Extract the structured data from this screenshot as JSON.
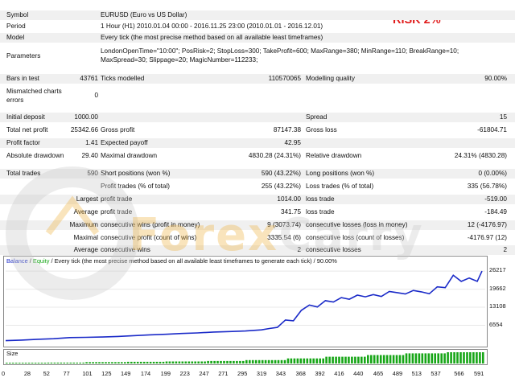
{
  "risk_label": "RISK 2%",
  "header": {
    "symbol_label": "Symbol",
    "symbol_value": "EURUSD (Euro vs US Dollar)",
    "period_label": "Period",
    "period_value": "1 Hour (H1) 2010.01.04 00:00 - 2016.11.25 23:00 (2010.01.01 - 2016.12.01)",
    "model_label": "Model",
    "model_value": "Every tick (the most precise method based on all available least timeframes)",
    "parameters_label": "Parameters",
    "parameters_line1": "LondonOpenTime=\"10:00\"; PosRisk=2; StopLoss=300; TakeProfit=600; MaxRange=380; MinRange=110; BreakRange=10;",
    "parameters_line2": "MaxSpread=30; Slippage=20; MagicNumber=112233;"
  },
  "stats": {
    "bars_label": "Bars in test",
    "bars_value": "43761",
    "ticks_label": "Ticks modelled",
    "ticks_value": "110570065",
    "quality_label": "Modelling quality",
    "quality_value": "90.00%",
    "mismatch_label": "Mismatched charts errors",
    "mismatch_value": "0",
    "deposit_label": "Initial deposit",
    "deposit_value": "1000.00",
    "spread_label": "Spread",
    "spread_value": "15",
    "netprofit_label": "Total net profit",
    "netprofit_value": "25342.66",
    "grossprofit_label": "Gross profit",
    "grossprofit_value": "87147.38",
    "grossloss_label": "Gross loss",
    "grossloss_value": "-61804.71",
    "pf_label": "Profit factor",
    "pf_value": "1.41",
    "payoff_label": "Expected payoff",
    "payoff_value": "42.95",
    "absdd_label": "Absolute drawdown",
    "absdd_value": "29.40",
    "maxdd_label": "Maximal drawdown",
    "maxdd_value": "4830.28 (24.31%)",
    "reldd_label": "Relative drawdown",
    "reldd_value": "24.31% (4830.28)",
    "trades_label": "Total trades",
    "trades_value": "590",
    "short_label": "Short positions (won %)",
    "short_value": "590 (43.22%)",
    "long_label": "Long positions (won %)",
    "long_value": "0 (0.00%)",
    "ptrades_label": "Profit trades (% of total)",
    "ptrades_value": "255 (43.22%)",
    "ltrades_label": "Loss trades (% of total)",
    "ltrades_value": "335 (56.78%)",
    "largest_label": "Largest",
    "largest_profit_label": "profit trade",
    "largest_profit_value": "1014.00",
    "largest_loss_label": "loss trade",
    "largest_loss_value": "-519.00",
    "average_label": "Average",
    "average_profit_label": "profit trade",
    "average_profit_value": "341.75",
    "average_loss_label": "loss trade",
    "average_loss_value": "-184.49",
    "maximum_label": "Maximum",
    "maxcw_label": "consecutive wins (profit in money)",
    "maxcw_value": "9 (3073.74)",
    "maxcl_label": "consecutive losses (loss in money)",
    "maxcl_value": "12 (-4176.97)",
    "maximal_label": "Maximal",
    "maxcp_label": "consecutive profit (count of wins)",
    "maxcp_value": "3335.54 (6)",
    "maxcloss_label": "consecutive loss (count of losses)",
    "maxcloss_value": "-4176.97 (12)",
    "average2_label": "Average",
    "avgcw_label": "consecutive wins",
    "avgcw_value": "2",
    "avgcl_label": "consecutive losses",
    "avgcl_value": "2"
  },
  "chart": {
    "legend_balance": "Balance",
    "legend_sep": " / ",
    "legend_equity": "Equity",
    "legend_rest": " / Every tick (the most precise method based on all available least timeframes to generate each tick) / 90.00%",
    "size_label": "Size",
    "y_ticks": [
      "26217",
      "19662",
      "13108",
      "6554"
    ],
    "x_ticks": [
      "0",
      "28",
      "52",
      "77",
      "101",
      "125",
      "149",
      "174",
      "199",
      "223",
      "247",
      "271",
      "295",
      "319",
      "343",
      "368",
      "392",
      "416",
      "440",
      "465",
      "489",
      "513",
      "537",
      "566",
      "591"
    ],
    "balance_color": "#1a2ac8",
    "volume_color": "#17a617"
  },
  "chart_data": {
    "type": "line",
    "title": "",
    "xlabel": "",
    "ylabel": "",
    "xlim": [
      0,
      600
    ],
    "ylim": [
      0,
      28000
    ],
    "series": [
      {
        "name": "Balance",
        "x": [
          0,
          20,
          40,
          60,
          80,
          100,
          120,
          140,
          160,
          180,
          200,
          220,
          240,
          260,
          280,
          300,
          320,
          330,
          340,
          350,
          360,
          370,
          380,
          390,
          400,
          410,
          420,
          430,
          440,
          450,
          460,
          470,
          480,
          490,
          500,
          510,
          520,
          530,
          540,
          550,
          560,
          570,
          580,
          590,
          596
        ],
        "values": [
          1000,
          1200,
          1500,
          1700,
          2100,
          2200,
          2300,
          2500,
          2800,
          3100,
          3300,
          3600,
          3800,
          4100,
          4300,
          4500,
          4900,
          5400,
          5800,
          8500,
          8200,
          12000,
          13900,
          13200,
          15500,
          15000,
          16600,
          16000,
          17500,
          16900,
          17700,
          17000,
          18800,
          18400,
          17900,
          19200,
          18700,
          18000,
          20500,
          20200,
          24700,
          22500,
          23700,
          22500,
          26217
        ]
      }
    ],
    "volume_series": {
      "name": "Size",
      "x_start": 0,
      "x_end": 596,
      "levels": [
        0.05,
        0.08,
        0.12,
        0.15,
        0.18,
        0.22,
        0.3,
        0.45,
        0.6,
        0.75,
        0.9,
        1.0
      ]
    }
  }
}
